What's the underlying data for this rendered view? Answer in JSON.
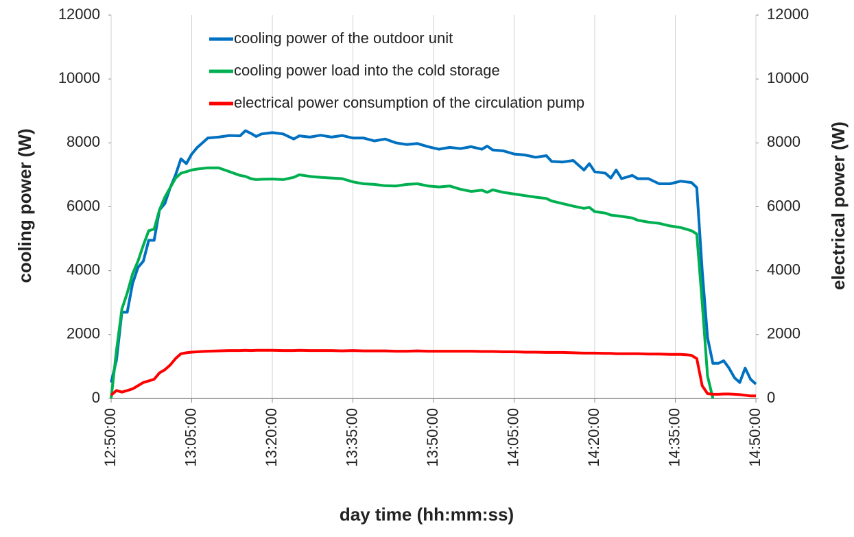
{
  "chart_data": {
    "type": "line",
    "xlabel": "day time (hh:mm:ss)",
    "ylabel": "cooling power (W)",
    "y2label": "electrical power (W)",
    "x": [
      "12:50:00",
      "12:51:00",
      "12:52:00",
      "12:53:00",
      "12:54:00",
      "12:55:00",
      "12:56:00",
      "12:57:00",
      "12:58:00",
      "12:59:00",
      "13:00:00",
      "13:01:00",
      "13:02:00",
      "13:03:00",
      "13:04:00",
      "13:05:00",
      "13:06:00",
      "13:07:00",
      "13:08:00",
      "13:10:00",
      "13:12:00",
      "13:14:00",
      "13:15:00",
      "13:16:00",
      "13:17:00",
      "13:18:00",
      "13:20:00",
      "13:22:00",
      "13:24:00",
      "13:25:00",
      "13:27:00",
      "13:29:00",
      "13:31:00",
      "13:33:00",
      "13:35:00",
      "13:37:00",
      "13:39:00",
      "13:41:00",
      "13:43:00",
      "13:45:00",
      "13:47:00",
      "13:49:00",
      "13:51:00",
      "13:53:00",
      "13:55:00",
      "13:57:00",
      "13:59:00",
      "14:00:00",
      "14:01:00",
      "14:03:00",
      "14:05:00",
      "14:07:00",
      "14:09:00",
      "14:11:00",
      "14:12:00",
      "14:14:00",
      "14:16:00",
      "14:18:00",
      "14:19:00",
      "14:20:00",
      "14:22:00",
      "14:23:00",
      "14:24:00",
      "14:25:00",
      "14:27:00",
      "14:28:00",
      "14:30:00",
      "14:32:00",
      "14:34:00",
      "14:36:00",
      "14:37:00",
      "14:38:00",
      "14:39:00",
      "14:40:00",
      "14:41:00",
      "14:42:00",
      "14:43:00",
      "14:44:00",
      "14:45:00",
      "14:46:00",
      "14:47:00",
      "14:48:00",
      "14:49:00",
      "14:50:00"
    ],
    "series": [
      {
        "name": "cooling power of the outdoor unit",
        "color": "#0070c0",
        "values": [
          500,
          1200,
          2700,
          2700,
          3600,
          4100,
          4300,
          4950,
          4950,
          5900,
          6100,
          6600,
          7000,
          7500,
          7350,
          7650,
          7850,
          8000,
          8150,
          8180,
          8230,
          8220,
          8380,
          8300,
          8200,
          8280,
          8320,
          8280,
          8120,
          8220,
          8180,
          8240,
          8180,
          8230,
          8150,
          8150,
          8060,
          8120,
          8000,
          7950,
          7980,
          7880,
          7800,
          7860,
          7820,
          7880,
          7800,
          7900,
          7780,
          7750,
          7650,
          7620,
          7550,
          7600,
          7420,
          7400,
          7450,
          7150,
          7350,
          7100,
          7050,
          6900,
          7150,
          6880,
          6980,
          6880,
          6880,
          6720,
          6720,
          6800,
          6780,
          6760,
          6600,
          4000,
          1900,
          1100,
          1100,
          1180,
          950,
          650,
          500,
          950,
          600,
          450
        ]
      },
      {
        "name": "cooling power load into the cold storage",
        "color": "#00b050",
        "values": [
          0,
          1500,
          2800,
          3300,
          3900,
          4300,
          4800,
          5250,
          5300,
          5900,
          6300,
          6600,
          6900,
          7050,
          7100,
          7150,
          7180,
          7200,
          7220,
          7220,
          7100,
          6980,
          6950,
          6880,
          6850,
          6860,
          6870,
          6850,
          6920,
          7000,
          6950,
          6920,
          6900,
          6880,
          6780,
          6720,
          6700,
          6660,
          6650,
          6700,
          6720,
          6650,
          6620,
          6650,
          6550,
          6480,
          6520,
          6450,
          6530,
          6450,
          6400,
          6350,
          6300,
          6260,
          6180,
          6100,
          6020,
          5950,
          5980,
          5850,
          5800,
          5740,
          5720,
          5700,
          5650,
          5580,
          5520,
          5480,
          5400,
          5350,
          5300,
          5250,
          5150,
          3000,
          700,
          0,
          null,
          null,
          null,
          null,
          null,
          null,
          null,
          null
        ]
      },
      {
        "name": "electrical power consumption of the circulation pump",
        "color": "#ff0000",
        "axis": "y2",
        "values": [
          100,
          250,
          200,
          250,
          300,
          400,
          500,
          550,
          600,
          800,
          900,
          1050,
          1250,
          1400,
          1430,
          1450,
          1460,
          1470,
          1480,
          1490,
          1500,
          1500,
          1510,
          1500,
          1510,
          1510,
          1510,
          1500,
          1500,
          1510,
          1500,
          1500,
          1500,
          1490,
          1500,
          1490,
          1490,
          1490,
          1480,
          1480,
          1490,
          1480,
          1480,
          1480,
          1480,
          1480,
          1470,
          1470,
          1470,
          1460,
          1460,
          1450,
          1450,
          1440,
          1440,
          1440,
          1430,
          1420,
          1420,
          1420,
          1410,
          1410,
          1400,
          1400,
          1400,
          1400,
          1390,
          1390,
          1380,
          1380,
          1370,
          1350,
          1250,
          400,
          150,
          130,
          130,
          140,
          140,
          130,
          120,
          100,
          80,
          80
        ]
      }
    ],
    "xlim": [
      "12:50:00",
      "14:50:00"
    ],
    "xticks": [
      "12:50:00",
      "13:05:00",
      "13:20:00",
      "13:35:00",
      "13:50:00",
      "14:05:00",
      "14:20:00",
      "14:35:00",
      "14:50:00"
    ],
    "ylim": [
      0,
      12000
    ],
    "yticks": [
      0,
      2000,
      4000,
      6000,
      8000,
      10000,
      12000
    ],
    "y2lim": [
      0,
      12000
    ],
    "y2ticks": [
      0,
      2000,
      4000,
      6000,
      8000,
      10000,
      12000
    ],
    "grid": "x",
    "legend": "top"
  }
}
